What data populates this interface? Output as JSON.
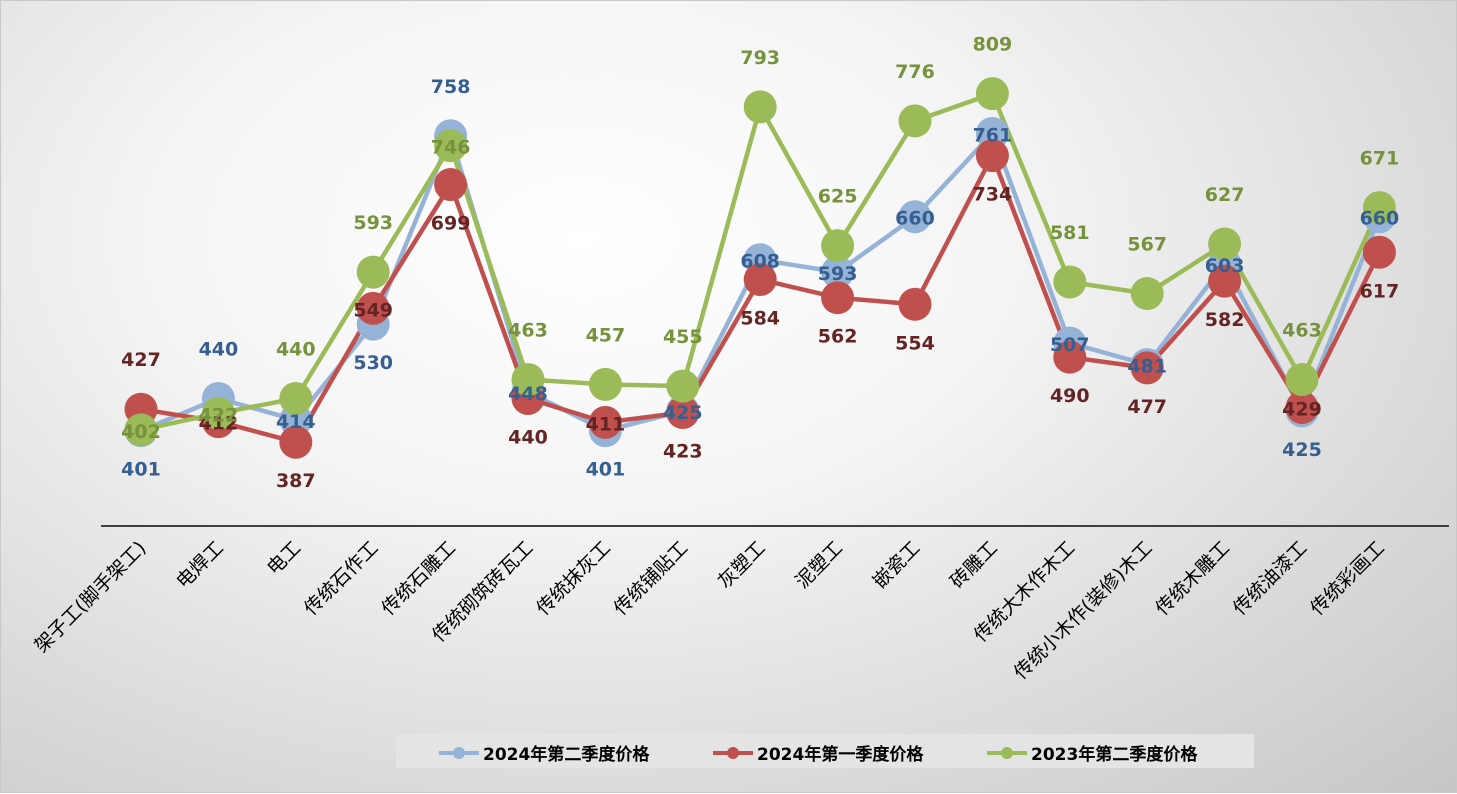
{
  "chart_data": {
    "type": "line",
    "title": "",
    "xlabel": "",
    "ylabel": "",
    "ylim": [
      0,
      900
    ],
    "grid": false,
    "legend_position": "bottom",
    "categories": [
      "架子工(脚手架工)",
      "电焊工",
      "电工",
      "传统石作工",
      "传统石雕工",
      "传统砌筑砖瓦工",
      "传统抹灰工",
      "传统铺贴工",
      "灰塑工",
      "泥塑工",
      "嵌瓷工",
      "砖雕工",
      "传统大木作木工",
      "传统小木作(装修)木工",
      "传统木雕工",
      "传统油漆工",
      "传统彩画工"
    ],
    "series": [
      {
        "name": "2024年第二季度价格",
        "color": "#95b3d7",
        "label_color": "#365f91",
        "values": [
          401,
          440,
          414,
          530,
          758,
          448,
          401,
          425,
          608,
          593,
          660,
          761,
          507,
          481,
          603,
          425,
          660
        ]
      },
      {
        "name": "2024年第一季度价格",
        "color": "#c0504d",
        "label_color": "#632523",
        "values": [
          427,
          412,
          387,
          549,
          699,
          440,
          411,
          423,
          584,
          562,
          554,
          734,
          490,
          477,
          582,
          429,
          617
        ]
      },
      {
        "name": "2023年第二季度价格",
        "color": "#9bbb59",
        "label_color": "#76923c",
        "values": [
          402,
          422,
          440,
          593,
          746,
          463,
          457,
          455,
          793,
          625,
          776,
          809,
          581,
          567,
          627,
          463,
          671
        ]
      }
    ]
  }
}
